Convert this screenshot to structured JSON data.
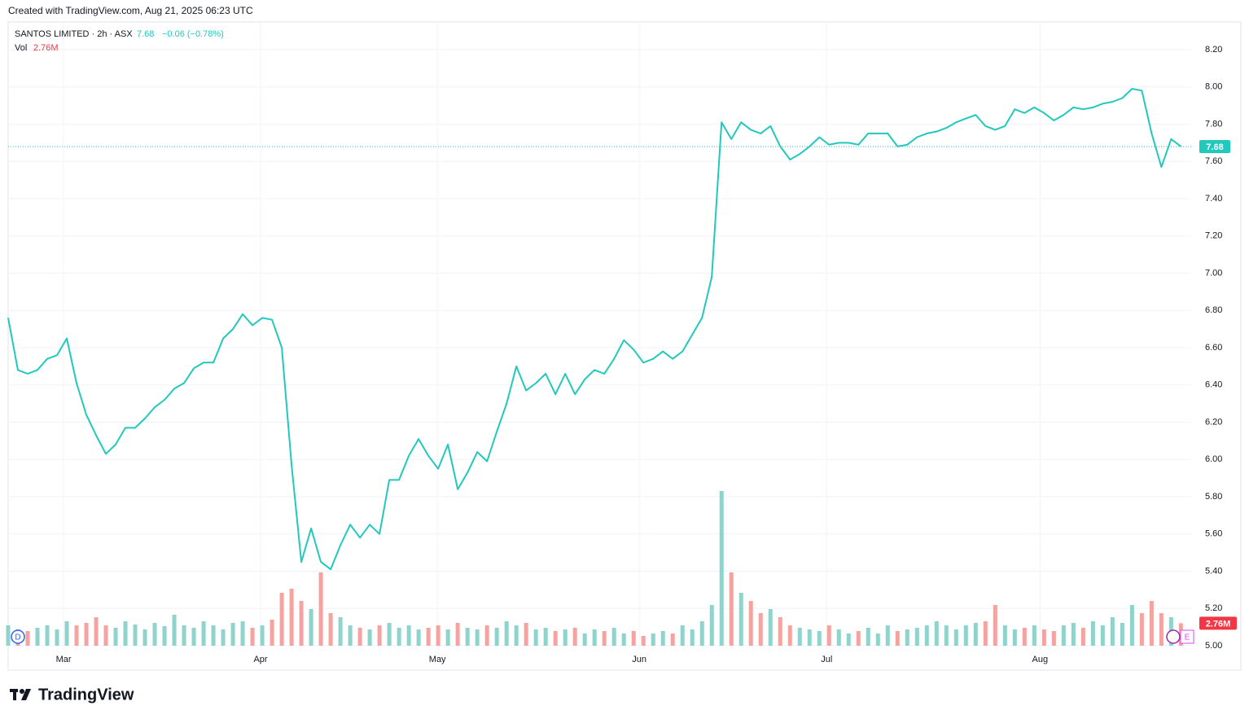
{
  "chart_data": {
    "type": "line",
    "credit": "Created with TradingView.com, Aug 21, 2025 06:23 UTC",
    "title": "SANTOS LIMITED · 2h · ASX",
    "change": "−0.06 (−0.78%)",
    "brand": "TradingView",
    "badges": [
      "D",
      "E"
    ],
    "color": "#22c8bc",
    "values": [
      6.76,
      6.48,
      6.46,
      6.48,
      6.54,
      6.56,
      6.65,
      6.41,
      6.24,
      6.13,
      6.03,
      6.08,
      6.17,
      6.17,
      6.22,
      6.28,
      6.32,
      6.38,
      6.41,
      6.49,
      6.52,
      6.52,
      6.65,
      6.7,
      6.78,
      6.72,
      6.76,
      6.75,
      6.6,
      5.97,
      5.45,
      5.63,
      5.45,
      5.41,
      5.54,
      5.65,
      5.58,
      5.65,
      5.6,
      5.89,
      5.89,
      6.02,
      6.11,
      6.02,
      5.95,
      6.08,
      5.84,
      5.93,
      6.04,
      5.99,
      6.15,
      6.3,
      6.5,
      6.37,
      6.41,
      6.46,
      6.35,
      6.46,
      6.35,
      6.43,
      6.48,
      6.46,
      6.54,
      6.64,
      6.59,
      6.52,
      6.54,
      6.58,
      6.54,
      6.58,
      6.67,
      6.76,
      6.98,
      7.81,
      7.72,
      7.81,
      7.77,
      7.75,
      7.79,
      7.68,
      7.61,
      7.64,
      7.68,
      7.73,
      7.69,
      7.7,
      7.7,
      7.69,
      7.75,
      7.75,
      7.75,
      7.68,
      7.69,
      7.73,
      7.75,
      7.76,
      7.78,
      7.81,
      7.83,
      7.85,
      7.79,
      7.77,
      7.79,
      7.88,
      7.86,
      7.89,
      7.86,
      7.82,
      7.85,
      7.89,
      7.88,
      7.89,
      7.91,
      7.92,
      7.94,
      7.99,
      7.98,
      7.75,
      7.57,
      7.72,
      7.68
    ],
    "volume": {
      "name": "Vol",
      "last_label": "2.76M",
      "up_color": "#8fd3cc",
      "down_color": "#f5a3a0",
      "values": [
        2.5,
        2.0,
        1.8,
        2.2,
        2.5,
        2.0,
        3.0,
        2.5,
        2.8,
        3.5,
        2.5,
        2.2,
        3.0,
        2.6,
        2.0,
        2.8,
        2.4,
        3.8,
        2.5,
        2.2,
        3.0,
        2.5,
        2.0,
        2.8,
        3.0,
        2.2,
        2.5,
        3.2,
        6.5,
        7.0,
        5.5,
        4.5,
        9.0,
        4.0,
        3.5,
        2.5,
        2.2,
        2.0,
        2.5,
        2.8,
        2.2,
        2.5,
        2.0,
        2.2,
        2.5,
        2.0,
        2.8,
        2.2,
        2.0,
        2.5,
        2.2,
        3.0,
        2.5,
        2.8,
        2.0,
        2.2,
        1.8,
        2.0,
        2.2,
        1.5,
        2.0,
        1.8,
        2.2,
        1.5,
        1.8,
        1.2,
        1.5,
        1.8,
        1.5,
        2.5,
        2.0,
        3.0,
        5.0,
        19.0,
        9.0,
        6.5,
        5.5,
        4.0,
        4.5,
        3.5,
        2.5,
        2.2,
        2.0,
        1.8,
        2.5,
        2.0,
        1.5,
        1.8,
        2.2,
        1.5,
        2.5,
        1.8,
        2.0,
        2.2,
        2.5,
        3.0,
        2.5,
        2.0,
        2.5,
        2.8,
        3.0,
        5.0,
        2.5,
        2.0,
        2.2,
        2.5,
        2.0,
        1.8,
        2.5,
        2.8,
        2.2,
        3.0,
        2.5,
        3.5,
        2.8,
        5.0,
        4.0,
        5.5,
        4.0,
        3.5,
        2.76
      ]
    },
    "xlim": [
      0,
      121.8
    ],
    "xticks": [
      {
        "value": 5.67,
        "label": "Mar"
      },
      {
        "value": 25.83,
        "label": "Apr"
      },
      {
        "value": 43.92,
        "label": "May"
      },
      {
        "value": 64.58,
        "label": "Jun"
      },
      {
        "value": 83.75,
        "label": "Jul"
      },
      {
        "value": 105.58,
        "label": "Aug"
      }
    ],
    "ylim": [
      5,
      8.2
    ],
    "yticks": [
      {
        "value": 5,
        "label": "5.00"
      },
      {
        "value": 5.2,
        "label": "5.20"
      },
      {
        "value": 5.4,
        "label": "5.40"
      },
      {
        "value": 5.6,
        "label": "5.60"
      },
      {
        "value": 5.8,
        "label": "5.80"
      },
      {
        "value": 6,
        "label": "6.00"
      },
      {
        "value": 6.2,
        "label": "6.20"
      },
      {
        "value": 6.4,
        "label": "6.40"
      },
      {
        "value": 6.6,
        "label": "6.60"
      },
      {
        "value": 6.8,
        "label": "6.80"
      },
      {
        "value": 7,
        "label": "7.00"
      },
      {
        "value": 7.2,
        "label": "7.20"
      },
      {
        "value": 7.4,
        "label": "7.40"
      },
      {
        "value": 7.6,
        "label": "7.60"
      },
      {
        "value": 7.8,
        "label": "7.80"
      },
      {
        "value": 8,
        "label": "8.00"
      },
      {
        "value": 8.2,
        "label": "8.20"
      }
    ],
    "grid": true
  }
}
